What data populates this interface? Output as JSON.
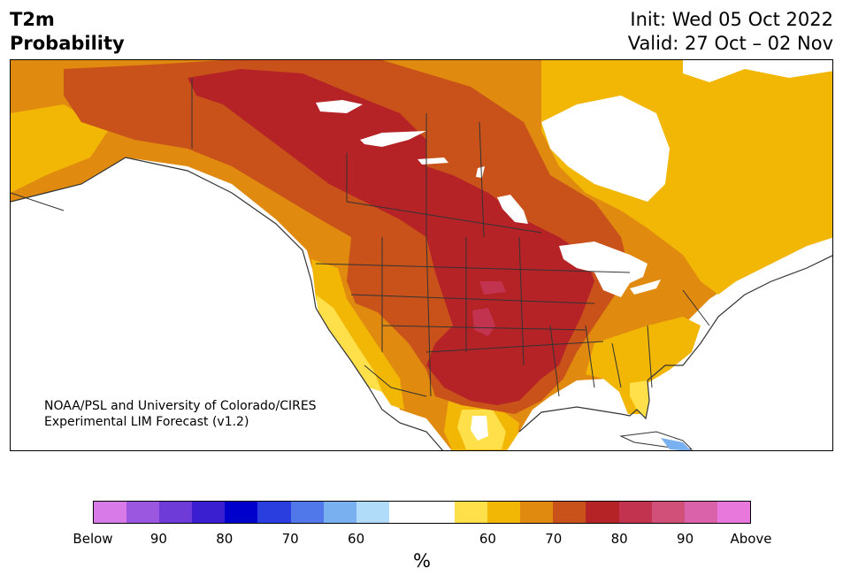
{
  "header": {
    "title_line1": "T2m",
    "title_line2": "Probability",
    "init": "Init: Wed 05 Oct 2022",
    "valid": "Valid: 27 Oct – 02 Nov"
  },
  "credit": {
    "line1": "NOAA/PSL and University of Colorado/CIRES",
    "line2": "Experimental LIM Forecast (v1.2)"
  },
  "colorbar": {
    "colors": [
      "#d87ae8",
      "#9b57e0",
      "#6e3ad8",
      "#3a1fd0",
      "#0000cc",
      "#2a3ee0",
      "#5078ea",
      "#78b0f0",
      "#b0dcfa",
      "#ffffff",
      "#ffffff",
      "#ffe04a",
      "#f2b705",
      "#e08a10",
      "#c8521a",
      "#b52326",
      "#c23350",
      "#d0507a",
      "#da62aa",
      "#e878dc"
    ],
    "ticks": [
      "Below",
      "90",
      "80",
      "70",
      "60",
      "60",
      "70",
      "80",
      "90",
      "Above"
    ],
    "unit": "%"
  },
  "map_colors": {
    "ocean": "#ffffff",
    "p60": "#ffe04a",
    "p65": "#f2b705",
    "p70": "#e08a10",
    "p75": "#c8521a",
    "p80": "#b52326",
    "p85": "#c23350",
    "below": "#78b0f0",
    "border": "#333333"
  }
}
